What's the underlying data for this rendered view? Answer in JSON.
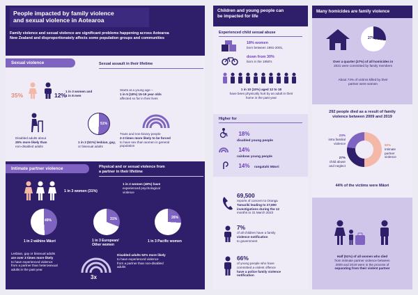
{
  "left": {
    "title_line1": "People impacted by family violence",
    "title_line2": "and sexual violence in Aotearoa",
    "intro_line1": "Family violence and sexual violence are significant problems happening across Aotearoa",
    "intro_line2": "New Zealand and disproportionately affects some population groups and communities",
    "sexual_violence": {
      "pill": "Sexual violence",
      "subheading": "Sexual assault in their lifetime",
      "pct_women": "35%",
      "pct_men": "12%",
      "ratio_line1": "1 in 3 women and",
      "ratio_line2": "1 in 8 men",
      "young_line1": "Starts at a young age –",
      "young_line2": "1 in 5 (18%) 15-19 year olds",
      "young_line3": "affected so far in their lives",
      "disabled_line1": "Disabled adults about",
      "disabled_line2": "25% more likely than",
      "disabled_line3": "non-disabled adults",
      "lgb_pie_label": "51%",
      "lgb_line1": "1 in 2 (51%) lesbian, gay,",
      "lgb_line2": "or bisexual adults",
      "trans_line1": "Trans and non-binary people",
      "trans_line2": "2-3 times more likely to be forced",
      "trans_line3": "to have sex than women in general",
      "trans_line4": "population"
    },
    "ipv": {
      "pill": "Intimate partner violence",
      "subheading_line1": "Physical and or sexual violence from",
      "subheading_line2": "a partner in their lifetime",
      "women_ratio": "1 in 3 women (31%)",
      "psych_line1": "1 in 2 women (48%) have",
      "psych_line2": "experienced psychological",
      "psych_line3": "violence",
      "pie_maori": "49%",
      "pie_euro": "31%",
      "pie_pacific": "26%",
      "label_maori": "1 in 2 wāhine Māori",
      "label_euro_line1": "1 in 3 European/",
      "label_euro_line2": "Other women",
      "label_pacific": "1 in 3 Pacific women",
      "lgb_line1": "Lesbian, gay or bisexual adults",
      "lgb_line2": "are over 3 times more likely",
      "lgb_line3": "to have experienced violence",
      "lgb_line4": "from a partner than heterosexual",
      "lgb_line5": "adults in the past year",
      "arch_label": "3x",
      "dis_line1": "Disabled adults 52% more likely",
      "dis_line2": "to have experienced violence",
      "dis_line3": "from a partner than non-disabled",
      "dis_line4": "adults"
    }
  },
  "middle": {
    "header_line1": "Children and young people can",
    "header_line2": "be impacted for life",
    "csa_heading": "Experienced child sexual abuse",
    "csa_women_line1": "18% women",
    "csa_women_line2": "born between 1991-2001,",
    "csa_down_line1": "down from 30%",
    "csa_down_line2": "born in the 1950's",
    "hurt_line1": "1 in 10 (10%) aged 12 to 18",
    "hurt_line2": "have been physically hurt by an adult in their",
    "hurt_line3": "home in the past year",
    "higher_for": "Higher for",
    "higher": [
      {
        "pct": "18%",
        "label": "disabled young people"
      },
      {
        "pct": "14%",
        "label": "rainbow young people"
      },
      {
        "pct": "14%",
        "label": "rangatahi Māori"
      }
    ],
    "reports_number": "69,500",
    "reports_line1": "reports of concern to Oranga",
    "reports_line2": "Tamariki leading to 27,800",
    "reports_line3": "investigations during the 12",
    "reports_line4": "months to 31 March 2023",
    "notif_pct": "7%",
    "notif_line1": "of all children have a family",
    "notif_line2": "violence notification",
    "notif_line3": "to government",
    "offend_pct": "66%",
    "offend_line1": "of young people who have",
    "offend_line2": "committed a violent offence",
    "offend_line3": "have a police family violence",
    "offend_line4": "notification"
  },
  "right": {
    "header": "Many homicides are family violence",
    "house_pie_label": "27%",
    "quarter_line1": "Over a quarter (27%) of all homicides in",
    "quarter_line2": "2021 were committed by family members",
    "victims_line1": "About 74% of victims killed by their",
    "victims_line2": "partner were women",
    "died_line1": "292 people died as a result of family",
    "died_line2": "violence between 2009 and 2019",
    "donut": {
      "label_intra_pct": "23%",
      "label_intra_line1": "intra familial",
      "label_intra_line2": "violence",
      "label_child_pct": "27%",
      "label_child_line1": "child abuse",
      "label_child_line2": "and neglect",
      "label_ipv_pct": "50%",
      "label_ipv_line1": "intimate",
      "label_ipv_line2": "partner",
      "label_ipv_line3": "violence"
    },
    "maori_line": "44% of the victims were Māori",
    "half_line1": "Half (51%) of all women who died",
    "half_line2": "from intimate partner violence between",
    "half_line3": "2009 and 2019 were in the process of",
    "half_line4": "separating from their violent partner"
  },
  "colors": {
    "navy": "#2f1f6b",
    "purple": "#7e63c0",
    "lavender": "#cfc6ea",
    "pale": "#efecf8",
    "peach": "#f4b8a8",
    "background": "#eceaf3"
  },
  "chart_data": [
    {
      "type": "pie",
      "categories": [
        "lesbian, gay or bisexual adults sexually assaulted"
      ],
      "values": [
        51
      ]
    },
    {
      "type": "pie",
      "categories": [
        "wāhine Māori"
      ],
      "values": [
        49
      ]
    },
    {
      "type": "pie",
      "categories": [
        "European/Other women"
      ],
      "values": [
        31
      ]
    },
    {
      "type": "pie",
      "categories": [
        "Pacific women"
      ],
      "values": [
        26
      ]
    },
    {
      "type": "pie",
      "categories": [
        "homicides by family members"
      ],
      "values": [
        27
      ]
    },
    {
      "type": "pie",
      "categories": [
        "intimate partner violence",
        "intra familial violence",
        "child abuse and neglect"
      ],
      "values": [
        50,
        23,
        27
      ]
    }
  ]
}
